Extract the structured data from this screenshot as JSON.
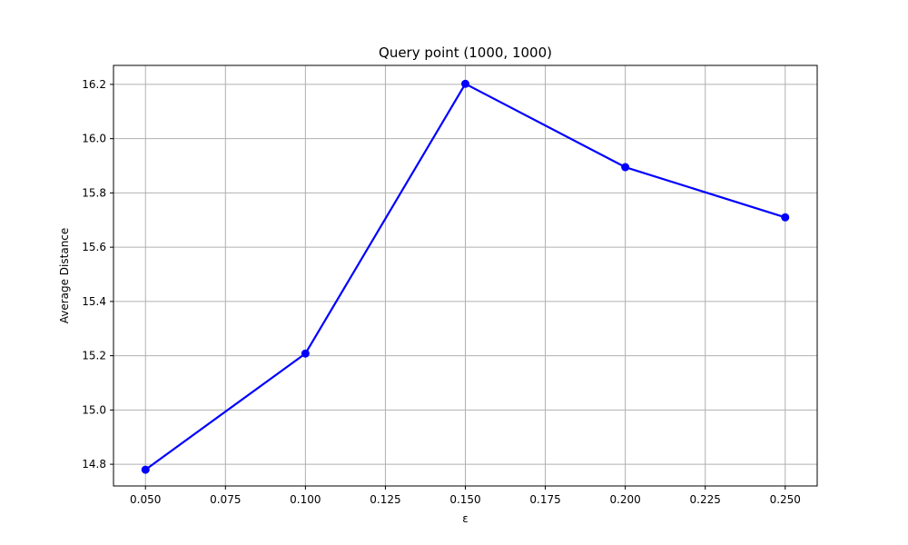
{
  "chart_data": {
    "type": "line",
    "title": "Query point (1000, 1000)",
    "xlabel": "ε",
    "ylabel": "Average Distance",
    "x": [
      0.05,
      0.1,
      0.15,
      0.2,
      0.25
    ],
    "series": [
      {
        "values": [
          14.78,
          15.208,
          16.202,
          15.895,
          15.71
        ],
        "color": "#0000ff",
        "marker": "circle"
      }
    ],
    "xlim": [
      0.04,
      0.26
    ],
    "ylim": [
      14.72,
      16.27
    ],
    "xticks": [
      0.05,
      0.075,
      0.1,
      0.125,
      0.15,
      0.175,
      0.2,
      0.225,
      0.25
    ],
    "xtick_labels": [
      "0.050",
      "0.075",
      "0.100",
      "0.125",
      "0.150",
      "0.175",
      "0.200",
      "0.225",
      "0.250"
    ],
    "yticks": [
      14.8,
      15.0,
      15.2,
      15.4,
      15.6,
      15.8,
      16.0,
      16.2
    ],
    "ytick_labels": [
      "14.8",
      "15.0",
      "15.2",
      "15.4",
      "15.6",
      "15.8",
      "16.0",
      "16.2"
    ],
    "grid": true
  }
}
